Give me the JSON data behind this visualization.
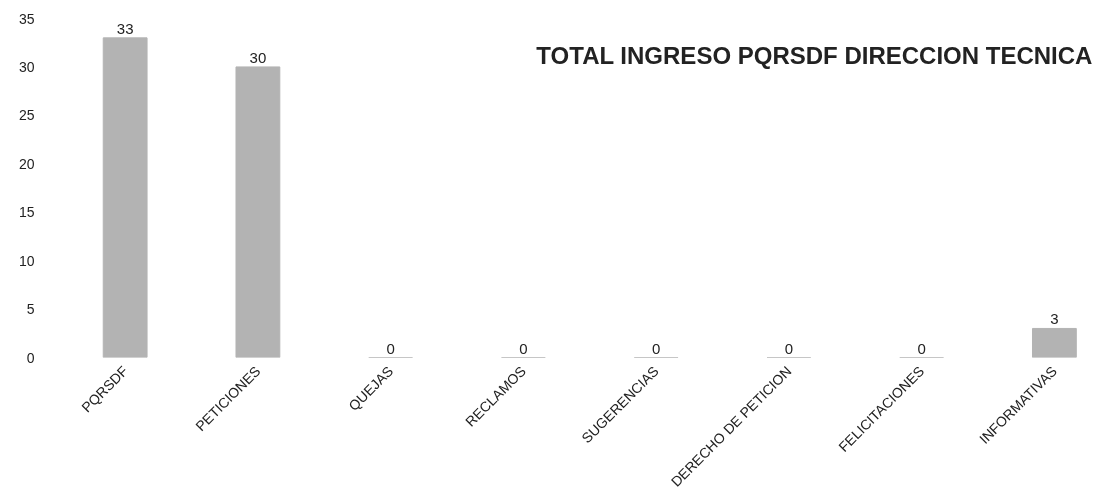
{
  "chart_data": {
    "type": "bar",
    "title": "TOTAL INGRESO PQRSDF  DIRECCION TECNICA",
    "categories": [
      "PQRSDF",
      "PETICIONES",
      "QUEJAS",
      "RECLAMOS",
      "SUGERENCIAS",
      "DERECHO DE PETICION",
      "FELICITACIONES",
      "INFORMATIVAS"
    ],
    "values": [
      33,
      30,
      0,
      0,
      0,
      0,
      0,
      3
    ],
    "color": "#b3b3b3",
    "ylim": [
      0,
      35
    ],
    "yticks": [
      0,
      5,
      10,
      15,
      20,
      25,
      30,
      35
    ],
    "grid": false,
    "data_labels": true
  }
}
